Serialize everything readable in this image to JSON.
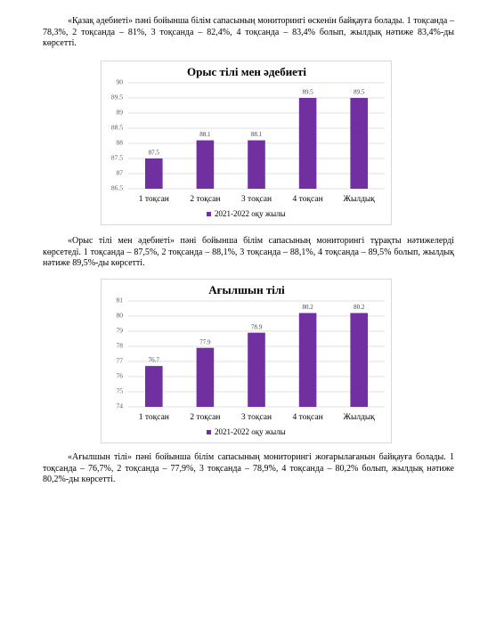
{
  "paragraphs": [
    "«Қазақ әдебиеті» пәні бойынша білім сапасының мониторингі өскенін байқауға болады. 1 тоқсанда – 78,3%, 2 тоқсанда – 81%, 3 тоқсанда – 82,4%, 4 тоқсанда – 83,4% болып, жылдық нәтиже 83,4%-ды көрсетті.",
    "«Орыс тілі мен әдебиеті» пәні бойынша білім сапасының мониторингі тұрақты нәтижелерді көрсетеді. 1 тоқсанда – 87,5%, 2 тоқсанда – 88,1%, 3 тоқсанда – 88,1%, 4 тоқсанда – 89,5% болып, жылдық нәтиже 89,5%-ды көрсетті.",
    "«Ағылшын тілі» пәні бойынша білім сапасының мониторингі жоғарылағанын байқауға болады. 1 тоқсанда – 76,7%, 2 тоқсанда – 77,9%, 3 тоқсанда – 78,9%, 4 тоқсанда – 80,2% болып, жылдық нәтиже 80,2%-ды көрсетті."
  ],
  "chart_data": [
    {
      "type": "bar",
      "title": "Орыс тілі мен әдебиеті",
      "categories": [
        "1 тоқсан",
        "2 тоқсан",
        "3 тоқсан",
        "4 тоқсан",
        "Жылдық"
      ],
      "series": [
        {
          "name": "2021-2022 оқу жылы",
          "color": "#7030a0",
          "values": [
            87.5,
            88.1,
            88.1,
            89.5,
            89.5
          ]
        }
      ],
      "ylim": [
        86.5,
        90
      ],
      "yticks": [
        86.5,
        87,
        87.5,
        88,
        88.5,
        89,
        89.5,
        90
      ],
      "grid": true,
      "legend": "bottom"
    },
    {
      "type": "bar",
      "title": "Ағылшын тілі",
      "categories": [
        "1 тоқсан",
        "2 тоқсан",
        "3 тоқсан",
        "4 тоқсан",
        "Жылдық"
      ],
      "series": [
        {
          "name": "2021-2022 оқу жылы",
          "color": "#7030a0",
          "values": [
            76.7,
            77.9,
            78.9,
            80.2,
            80.2
          ]
        }
      ],
      "ylim": [
        74,
        81
      ],
      "yticks": [
        74,
        75,
        76,
        77,
        78,
        79,
        80,
        81
      ],
      "grid": true,
      "legend": "bottom"
    }
  ]
}
